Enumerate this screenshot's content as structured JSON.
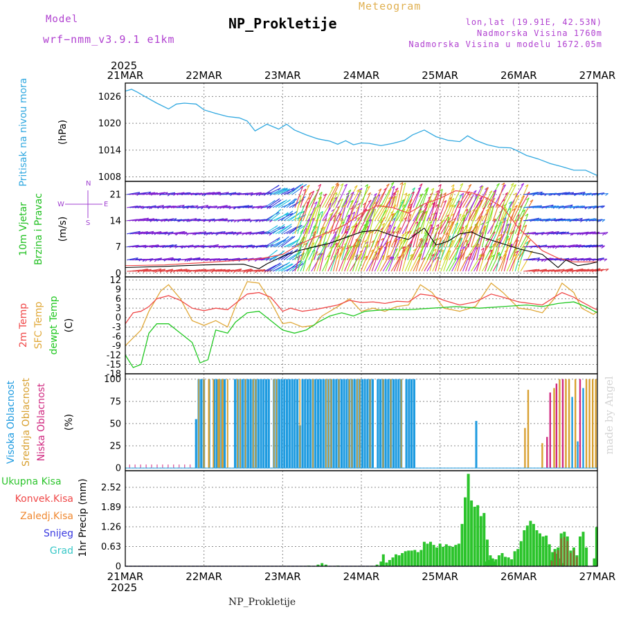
{
  "header": {
    "model_label": "Model",
    "model_name": "wrf−nmm_v3.9.1 e1km",
    "product": "Meteogram",
    "title": "NP_Prokletije",
    "coords": "lon,lat (19.91E, 42.53N)",
    "elevation": "Nadmorska Visina 1760m",
    "model_elevation": "Nadmorska Visina u modelu 1672.05m"
  },
  "footer": {
    "station": "NP_Prokletije",
    "credit": "made by Angel"
  },
  "time_axis": {
    "year": "2025",
    "labels": [
      "21MAR",
      "22MAR",
      "23MAR",
      "24MAR",
      "25MAR",
      "26MAR",
      "27MAR"
    ]
  },
  "colors": {
    "pressure": "#30a8e0",
    "temp_2m": "#f04848",
    "temp_sfc": "#e0a838",
    "dewpoint": "#20c820",
    "cloud_high": "#1e9be0",
    "cloud_mid": "#d8a030",
    "cloud_low": "#d02880",
    "precip_total": "#2cc42c",
    "precip_conv": "#f04848",
    "precip_frozen": "#f08830",
    "snow": "#3838e0",
    "graupel": "#38c8c8",
    "wind_speed": "#000000",
    "wind_gust": "#f04848"
  },
  "chart_data": [
    {
      "type": "line",
      "name": "pressure",
      "label_lines": [
        "Pritisak na nivou mora",
        "(hPa)"
      ],
      "ylim": [
        1007,
        1029
      ],
      "yticks": [
        1008,
        1014,
        1020,
        1026
      ],
      "x_days": [
        0,
        0.08,
        0.15,
        0.25,
        0.4,
        0.55,
        0.65,
        0.75,
        0.9,
        1.0,
        1.15,
        1.3,
        1.45,
        1.55,
        1.65,
        1.8,
        1.95,
        2.05,
        2.15,
        2.3,
        2.45,
        2.6,
        2.7,
        2.8,
        2.9,
        3.0,
        3.1,
        3.25,
        3.4,
        3.55,
        3.65,
        3.8,
        3.95,
        4.1,
        4.25,
        4.35,
        4.45,
        4.6,
        4.75,
        4.9,
        5.0,
        5.1,
        5.25,
        5.4,
        5.55,
        5.7,
        5.85,
        6.0
      ],
      "values": [
        1027.2,
        1027.6,
        1027.0,
        1026.0,
        1024.5,
        1023.2,
        1024.3,
        1024.5,
        1024.3,
        1023.0,
        1022.2,
        1021.5,
        1021.2,
        1020.5,
        1018.3,
        1019.8,
        1018.7,
        1019.8,
        1018.5,
        1017.4,
        1016.5,
        1016.0,
        1015.3,
        1016.1,
        1015.2,
        1015.6,
        1015.5,
        1015.0,
        1015.5,
        1016.2,
        1017.4,
        1018.5,
        1017.0,
        1016.2,
        1015.9,
        1017.2,
        1016.2,
        1015.2,
        1014.6,
        1014.5,
        1013.7,
        1012.8,
        1012.0,
        1011.0,
        1010.3,
        1009.5,
        1009.5,
        1008.3
      ]
    },
    {
      "type": "barbs",
      "name": "wind",
      "label_lines": [
        "10m Vjetar",
        "Brzina i Pravac",
        "(m/s)"
      ],
      "compass": [
        "N",
        "W",
        "E",
        "S"
      ],
      "ylim": [
        -1,
        24.5
      ],
      "yticks": [
        0,
        7,
        14,
        21
      ],
      "series": [
        {
          "name": "speed",
          "x_days": [
            0,
            0.5,
            1.0,
            1.5,
            1.7,
            1.8,
            2.0,
            2.2,
            2.4,
            2.6,
            2.8,
            3.0,
            3.2,
            3.4,
            3.6,
            3.8,
            3.95,
            4.1,
            4.25,
            4.4,
            4.55,
            4.7,
            4.85,
            5.0,
            5.3,
            5.5,
            5.6,
            5.75,
            5.9,
            6.0
          ],
          "values": [
            1.5,
            1.8,
            2.2,
            2.4,
            1.2,
            2.5,
            4.5,
            6.0,
            7.0,
            8.0,
            9.5,
            11.0,
            11.5,
            10.0,
            9.0,
            12.0,
            7.5,
            8.5,
            10.5,
            11.0,
            9.5,
            8.5,
            7.5,
            6.5,
            5.0,
            1.5,
            3.5,
            2.0,
            2.5,
            3.0
          ]
        },
        {
          "name": "gust",
          "x_days": [
            0,
            0.5,
            1.0,
            1.5,
            1.7,
            2.0,
            2.2,
            2.4,
            2.6,
            2.8,
            3.0,
            3.2,
            3.4,
            3.6,
            3.8,
            4.0,
            4.2,
            4.4,
            4.6,
            4.8,
            5.0,
            5.3,
            5.5,
            5.7,
            6.0
          ],
          "values": [
            2.0,
            2.2,
            2.8,
            3.5,
            3.8,
            5.0,
            7.5,
            9.5,
            11.0,
            13.0,
            16.0,
            18.0,
            17.5,
            16.0,
            18.5,
            20.0,
            22.0,
            21.5,
            20.0,
            17.5,
            12.0,
            6.0,
            4.0,
            3.0,
            3.0
          ]
        }
      ],
      "note": "wind direction and speed shown as coloured barbs along rows"
    },
    {
      "type": "line",
      "name": "temperature",
      "label_lines": [
        "2m Temp",
        "SFC Temp",
        "dewpt Temp",
        "(C)"
      ],
      "ylim": [
        -18,
        13
      ],
      "yticks": [
        12,
        9,
        6,
        3,
        0,
        -3,
        -6,
        -9,
        -12,
        -15,
        -18
      ],
      "series": [
        {
          "name": "2m Temp",
          "x_days": [
            0,
            0.1,
            0.2,
            0.3,
            0.4,
            0.55,
            0.7,
            0.85,
            1.0,
            1.15,
            1.3,
            1.4,
            1.55,
            1.7,
            1.85,
            2.0,
            2.1,
            2.25,
            2.4,
            2.5,
            2.7,
            2.85,
            3.0,
            3.15,
            3.3,
            3.45,
            3.6,
            3.75,
            3.9,
            4.05,
            4.25,
            4.45,
            4.65,
            4.8,
            5.0,
            5.15,
            5.3,
            5.45,
            5.55,
            5.7,
            5.8,
            5.95,
            6.0
          ],
          "values": [
            -2,
            1.5,
            2.0,
            3.5,
            6.0,
            7.0,
            5.5,
            3.0,
            2.2,
            3.0,
            2.5,
            4.5,
            7.5,
            8.0,
            6.5,
            2.0,
            3.0,
            2.0,
            2.5,
            3.0,
            4.0,
            5.5,
            4.8,
            5.0,
            4.5,
            5.2,
            5.0,
            7.5,
            7.0,
            5.5,
            4.0,
            5.0,
            7.5,
            6.5,
            5.0,
            4.5,
            4.0,
            6.5,
            8.0,
            6.5,
            5.0,
            3.0,
            2.5
          ]
        },
        {
          "name": "SFC Temp",
          "x_days": [
            0,
            0.1,
            0.2,
            0.3,
            0.45,
            0.55,
            0.7,
            0.85,
            1.0,
            1.15,
            1.3,
            1.4,
            1.55,
            1.7,
            1.85,
            2.0,
            2.1,
            2.25,
            2.4,
            2.5,
            2.7,
            2.85,
            3.0,
            3.15,
            3.3,
            3.45,
            3.6,
            3.75,
            3.9,
            4.05,
            4.25,
            4.45,
            4.65,
            4.8,
            5.0,
            5.15,
            5.3,
            5.45,
            5.55,
            5.7,
            5.8,
            5.95,
            6.0
          ],
          "values": [
            -9,
            -6.5,
            -4,
            2.0,
            8.5,
            10.5,
            6.0,
            -1.0,
            -2.5,
            -1.0,
            -3.0,
            3.5,
            11.5,
            11.0,
            5.0,
            -2.0,
            -1.5,
            -3.0,
            -2.5,
            0.5,
            3.5,
            6.0,
            2.0,
            3.0,
            2.0,
            3.5,
            4.0,
            10.5,
            8.0,
            3.0,
            2.0,
            3.5,
            11.0,
            8.0,
            3.0,
            2.5,
            1.5,
            6.0,
            11.0,
            8.0,
            3.0,
            1.0,
            2.0
          ]
        },
        {
          "name": "dewpt Temp",
          "x_days": [
            0,
            0.1,
            0.2,
            0.3,
            0.4,
            0.55,
            0.7,
            0.85,
            0.95,
            1.05,
            1.15,
            1.3,
            1.4,
            1.55,
            1.7,
            1.85,
            2.0,
            2.15,
            2.3,
            2.45,
            2.6,
            2.75,
            2.9,
            3.05,
            3.3,
            3.6,
            3.9,
            4.2,
            4.5,
            4.8,
            5.1,
            5.3,
            5.5,
            5.7,
            5.85,
            6.0
          ],
          "values": [
            -12,
            -16,
            -15,
            -5,
            -2.0,
            -2.0,
            -5.0,
            -8.0,
            -14.5,
            -13.5,
            -4.0,
            -5.0,
            -1.5,
            1.5,
            2.0,
            -1.0,
            -4.0,
            -5.0,
            -4.0,
            -1.5,
            0.5,
            1.5,
            0.5,
            2.0,
            2.5,
            2.5,
            3.0,
            3.5,
            3.0,
            3.5,
            4.0,
            3.5,
            4.5,
            5.0,
            3.5,
            1.5
          ]
        }
      ]
    },
    {
      "type": "bar",
      "name": "cloud_cover",
      "label_lines": [
        "Visoka Oblacnost",
        "Srednja Oblacnost",
        "Niska Oblacnost",
        "(%)"
      ],
      "ylim": [
        -3,
        106
      ],
      "yticks": [
        0,
        25,
        50,
        75,
        100
      ],
      "series": [
        {
          "name": "Visoka Oblacnost",
          "note": "high cloud 100% in [0.9,3.68] days with gaps; isolated 55 at 4.45"
        },
        {
          "name": "Srednja Oblacnost",
          "note": "mid cloud 100% around 1.0-1.3 and 5.45-6.0"
        },
        {
          "name": "Niska Oblacnost",
          "note": "low cloud sporadic near 5.45-5.95"
        }
      ]
    },
    {
      "type": "bar",
      "name": "precipitation",
      "label_lines": [
        "Ukupna Kisa",
        "Konvek.Kisa",
        "Zaledj.Kisa",
        "Snijeg",
        "Grad",
        "1hr Precip (mm)"
      ],
      "ylim": [
        0,
        3.05
      ],
      "yticks": [
        0,
        0.63,
        1.26,
        1.89,
        2.52
      ]
    }
  ]
}
